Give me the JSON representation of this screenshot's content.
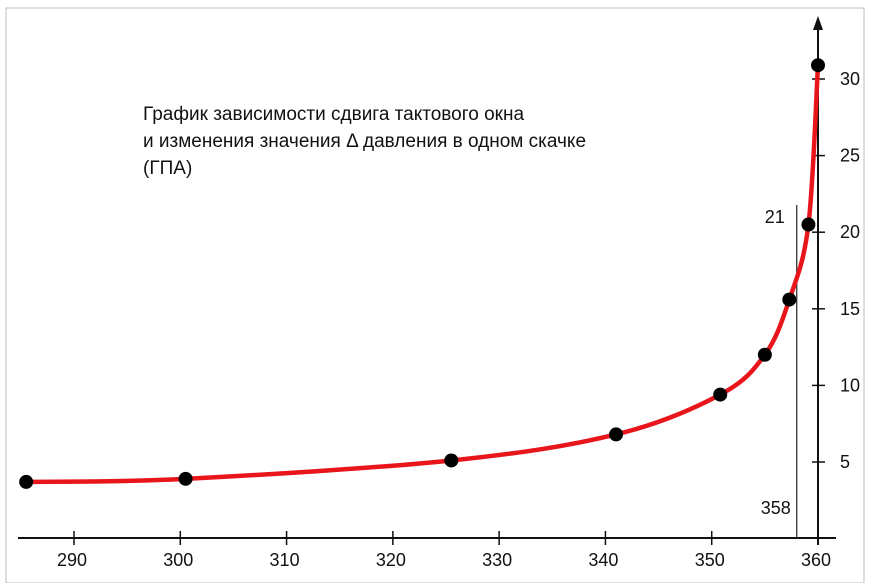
{
  "chart_data": {
    "type": "line",
    "title_lines": [
      "График зависимости сдвига тактового окна",
      "и изменения значения Δ давления в одном скачке",
      "(ГПА)"
    ],
    "xlabel": "",
    "ylabel": "",
    "xlim": [
      285,
      362
    ],
    "ylim": [
      0,
      33
    ],
    "x_ticks": [
      290,
      300,
      310,
      320,
      330,
      340,
      350,
      360
    ],
    "y_ticks": [
      5,
      10,
      15,
      20,
      25,
      30
    ],
    "grid": false,
    "curve_color": "#e8151b",
    "point_color": "#000000",
    "series": [
      {
        "x": [
          285.5,
          300.5,
          325.5,
          341,
          350.8,
          355,
          357.3,
          359.1,
          360
        ],
        "values": [
          3.7,
          3.9,
          5.1,
          6.8,
          9.4,
          12,
          15.6,
          20.5,
          30.9
        ]
      }
    ],
    "annotations": {
      "marker_x": 358,
      "marker_x_label": "358",
      "marker_y_label": "21"
    }
  }
}
